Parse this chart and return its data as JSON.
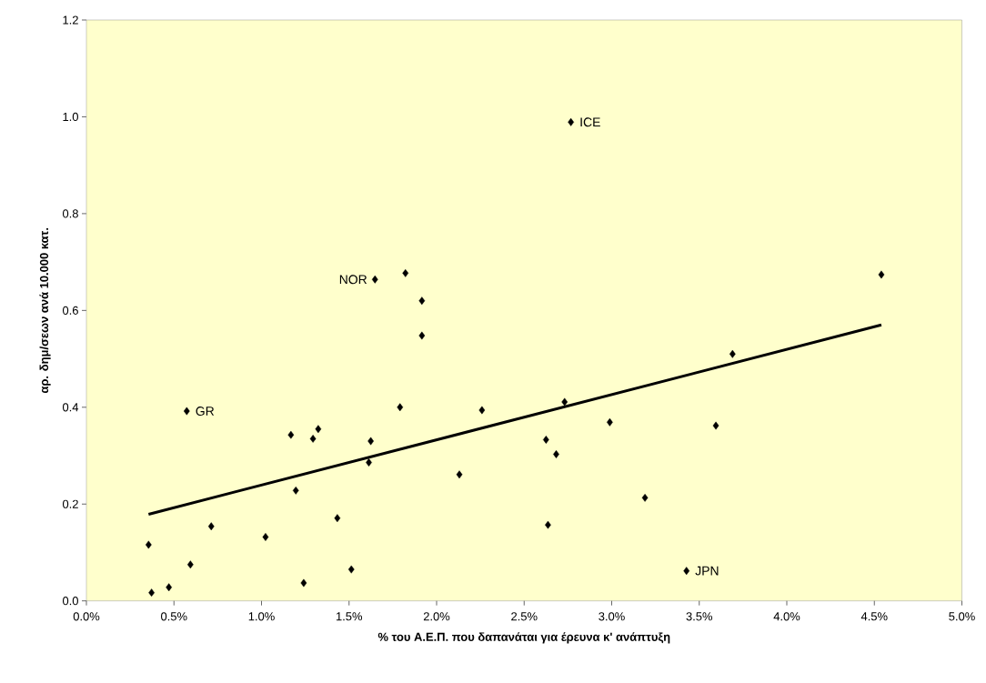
{
  "chart_data": {
    "type": "scatter",
    "xlabel": "% του Α.Ε.Π. που δαπανάται για έρευνα κ' ανάπτυξη",
    "ylabel": "αρ. δημ/σεων ανά 10.000 κατ.",
    "xlim": [
      0,
      5
    ],
    "ylim": [
      0,
      1.2
    ],
    "xticks": [
      {
        "value": 0,
        "label": "0.0%"
      },
      {
        "value": 0.5,
        "label": "0.5%"
      },
      {
        "value": 1,
        "label": "1.0%"
      },
      {
        "value": 1.5,
        "label": "1.5%"
      },
      {
        "value": 2,
        "label": "2.0%"
      },
      {
        "value": 2.5,
        "label": "2.5%"
      },
      {
        "value": 3,
        "label": "3.0%"
      },
      {
        "value": 3.5,
        "label": "3.5%"
      },
      {
        "value": 4,
        "label": "4.0%"
      },
      {
        "value": 4.5,
        "label": "4.5%"
      },
      {
        "value": 5,
        "label": "5.0%"
      }
    ],
    "yticks": [
      {
        "value": 0,
        "label": "0.0"
      },
      {
        "value": 0.2,
        "label": "0.2"
      },
      {
        "value": 0.4,
        "label": "0.4"
      },
      {
        "value": 0.6,
        "label": "0.6"
      },
      {
        "value": 0.8,
        "label": "0.8"
      },
      {
        "value": 1,
        "label": "1.0"
      },
      {
        "value": 1.2,
        "label": "1.2"
      }
    ],
    "series": [
      {
        "marker": "diamond",
        "color": "#000000",
        "x": [
          0.355,
          0.372,
          0.471,
          0.594,
          0.573,
          0.713,
          1.023,
          1.168,
          1.196,
          1.241,
          1.294,
          1.324,
          1.433,
          1.513,
          1.613,
          1.624,
          1.648,
          1.791,
          1.822,
          1.916,
          1.916,
          2.13,
          2.259,
          2.625,
          2.636,
          2.683,
          2.731,
          2.767,
          2.989,
          3.19,
          3.427,
          3.595,
          3.69,
          4.54
        ],
        "values": [
          0.116,
          0.017,
          0.028,
          0.075,
          0.392,
          0.154,
          0.132,
          0.343,
          0.228,
          0.037,
          0.335,
          0.355,
          0.171,
          0.065,
          0.286,
          0.33,
          0.664,
          0.4,
          0.677,
          0.62,
          0.548,
          0.261,
          0.394,
          0.333,
          0.157,
          0.303,
          0.411,
          0.989,
          0.369,
          0.213,
          0.062,
          0.362,
          0.51,
          0.674
        ]
      },
      {
        "type": "line",
        "color": "#000000",
        "x": [
          0.355,
          4.54
        ],
        "values": [
          0.179,
          0.57
        ]
      }
    ],
    "annotations": [
      {
        "text": "GR",
        "x": 0.573,
        "y": 0.392
      },
      {
        "text": "NOR",
        "x": 1.648,
        "y": 0.664
      },
      {
        "text": "ICE",
        "x": 2.767,
        "y": 0.989
      },
      {
        "text": "JPN",
        "x": 3.427,
        "y": 0.062
      }
    ]
  }
}
